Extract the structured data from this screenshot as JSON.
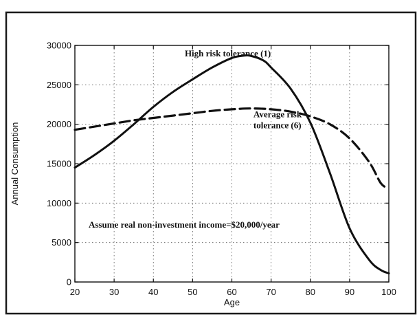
{
  "chart_data": {
    "type": "line",
    "title": "",
    "xlabel": "Age",
    "ylabel": "Annual Consumption",
    "xlim": [
      20,
      100
    ],
    "ylim": [
      0,
      30000
    ],
    "x_ticks": [
      20,
      30,
      40,
      50,
      60,
      70,
      80,
      90,
      100
    ],
    "y_ticks": [
      0,
      5000,
      10000,
      15000,
      20000,
      25000,
      30000
    ],
    "grid": true,
    "legend": "none",
    "series": [
      {
        "name": "High risk tolerance (1)",
        "style": "solid",
        "color": "#111111",
        "x": [
          20,
          25,
          30,
          35,
          40,
          45,
          50,
          55,
          60,
          63,
          65,
          68,
          70,
          75,
          80,
          85,
          90,
          95,
          98,
          100
        ],
        "y": [
          14500,
          16100,
          17900,
          20000,
          22200,
          24100,
          25700,
          27200,
          28400,
          28700,
          28650,
          28100,
          27200,
          24500,
          20200,
          13800,
          6800,
          2800,
          1500,
          1100
        ]
      },
      {
        "name": "Average risk tolerance (6)",
        "style": "dashed",
        "color": "#111111",
        "x": [
          20,
          25,
          30,
          35,
          40,
          45,
          50,
          55,
          60,
          65,
          70,
          75,
          80,
          85,
          90,
          95,
          98,
          100
        ],
        "y": [
          19300,
          19700,
          20100,
          20500,
          20800,
          21100,
          21400,
          21700,
          21900,
          22000,
          21900,
          21600,
          21000,
          20000,
          18200,
          15200,
          12500,
          11900
        ]
      }
    ],
    "annotations": [
      {
        "text": "High risk tolerance (1)",
        "x": 48,
        "y": 28600
      },
      {
        "text": "Average risk",
        "x": 65.5,
        "y": 20900
      },
      {
        "text": "tolerance (6)",
        "x": 65.5,
        "y": 19500
      },
      {
        "text": "Assume real non-investment income=$20,000/year",
        "x": 23.5,
        "y": 6900
      }
    ]
  }
}
